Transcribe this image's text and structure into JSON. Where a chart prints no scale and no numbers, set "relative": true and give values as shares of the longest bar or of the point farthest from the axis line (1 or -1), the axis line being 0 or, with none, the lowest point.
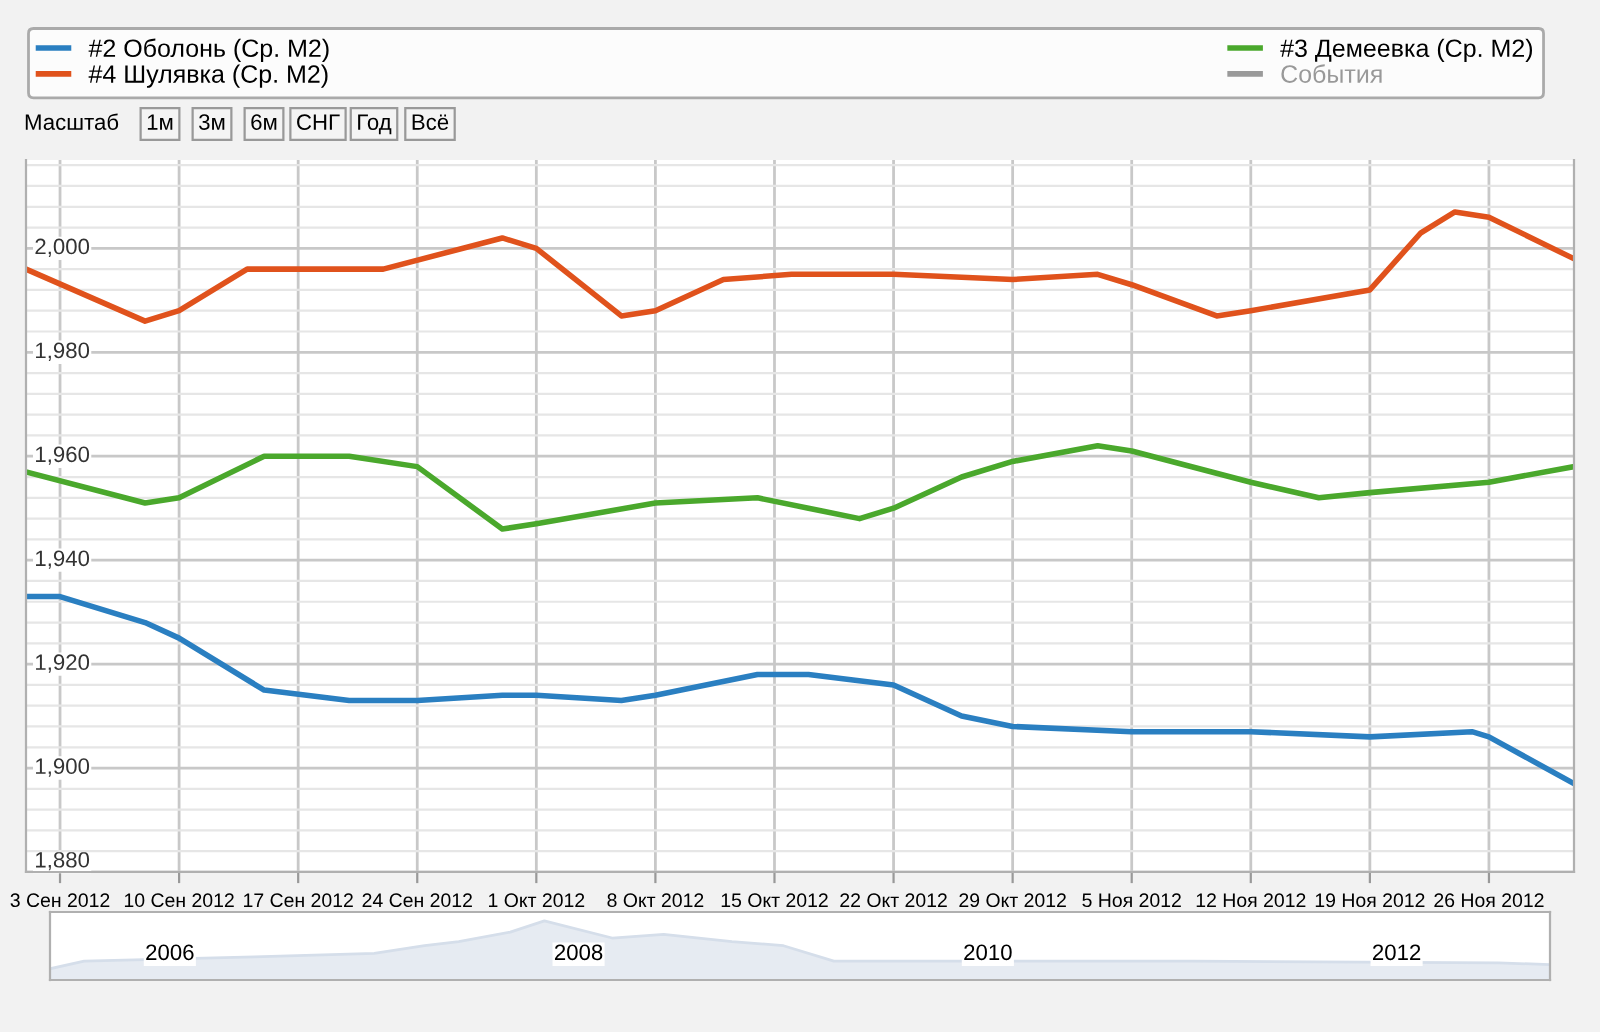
{
  "chart_data": [
    {
      "type": "line",
      "annotations": [
        "Масштаб",
        "1м",
        "3м",
        "6м",
        "СНГ",
        "Год",
        "Всё"
      ],
      "legend": "top",
      "grid": true,
      "xlim": [
        "2012-09-01",
        "2012-12-01"
      ],
      "xticks": [
        {
          "value": "2012-09-03",
          "label": "3 Сен 2012"
        },
        {
          "value": "2012-09-10",
          "label": "10 Сен 2012"
        },
        {
          "value": "2012-09-17",
          "label": "17 Сен 2012"
        },
        {
          "value": "2012-09-24",
          "label": "24 Сен 2012"
        },
        {
          "value": "2012-10-01",
          "label": "1 Окт 2012"
        },
        {
          "value": "2012-10-08",
          "label": "8 Окт 2012"
        },
        {
          "value": "2012-10-15",
          "label": "15 Окт 2012"
        },
        {
          "value": "2012-10-22",
          "label": "22 Окт 2012"
        },
        {
          "value": "2012-10-29",
          "label": "29 Окт 2012"
        },
        {
          "value": "2012-11-05",
          "label": "5 Ноя 2012"
        },
        {
          "value": "2012-11-12",
          "label": "12 Ноя 2012"
        },
        {
          "value": "2012-11-19",
          "label": "19 Ноя 2012"
        },
        {
          "value": "2012-11-26",
          "label": "26 Ноя 2012"
        }
      ],
      "ylim": [
        1880,
        2017
      ],
      "yticks": [
        {
          "value": 1880,
          "label": "1,880"
        },
        {
          "value": 1900,
          "label": "1,900"
        },
        {
          "value": 1920,
          "label": "1,920"
        },
        {
          "value": 1940,
          "label": "1,940"
        },
        {
          "value": 1960,
          "label": "1,960"
        },
        {
          "value": 1980,
          "label": "1,980"
        },
        {
          "value": 2000,
          "label": "2,000"
        }
      ],
      "series": [
        {
          "name": "#2 Оболонь (Ср. М2)",
          "color": "#2a7fc1",
          "x": [
            "2012-09-01",
            "2012-09-03",
            "2012-09-08",
            "2012-09-10",
            "2012-09-15",
            "2012-09-20",
            "2012-09-24",
            "2012-09-29",
            "2012-10-01",
            "2012-10-06",
            "2012-10-08",
            "2012-10-14",
            "2012-10-17",
            "2012-10-22",
            "2012-10-26",
            "2012-10-29",
            "2012-11-05",
            "2012-11-12",
            "2012-11-19",
            "2012-11-25",
            "2012-11-26",
            "2012-12-01"
          ],
          "values": [
            1933,
            1933,
            1928,
            1925,
            1915,
            1913,
            1913,
            1914,
            1914,
            1913,
            1914,
            1918,
            1918,
            1916,
            1910,
            1908,
            1907,
            1907,
            1906,
            1907,
            1906,
            1897
          ]
        },
        {
          "name": "#4 Шулявка (Ср. М2)",
          "color": "#e0521c",
          "x": [
            "2012-09-01",
            "2012-09-08",
            "2012-09-10",
            "2012-09-14",
            "2012-09-22",
            "2012-09-29",
            "2012-10-01",
            "2012-10-06",
            "2012-10-08",
            "2012-10-12",
            "2012-10-16",
            "2012-10-22",
            "2012-10-29",
            "2012-11-03",
            "2012-11-05",
            "2012-11-10",
            "2012-11-12",
            "2012-11-19",
            "2012-11-22",
            "2012-11-24",
            "2012-11-26",
            "2012-12-01"
          ],
          "values": [
            1996,
            1986,
            1988,
            1996,
            1996,
            2002,
            2000,
            1987,
            1988,
            1994,
            1995,
            1995,
            1994,
            1995,
            1993,
            1987,
            1988,
            1992,
            2003,
            2007,
            2006,
            1998
          ]
        },
        {
          "name": "#3 Демеевка (Ср. М2)",
          "color": "#4aa82c",
          "x": [
            "2012-09-01",
            "2012-09-08",
            "2012-09-10",
            "2012-09-15",
            "2012-09-20",
            "2012-09-24",
            "2012-09-29",
            "2012-10-01",
            "2012-10-08",
            "2012-10-14",
            "2012-10-17",
            "2012-10-20",
            "2012-10-22",
            "2012-10-26",
            "2012-10-29",
            "2012-11-03",
            "2012-11-05",
            "2012-11-12",
            "2012-11-16",
            "2012-11-19",
            "2012-11-26",
            "2012-12-01"
          ],
          "values": [
            1957,
            1951,
            1952,
            1960,
            1960,
            1958,
            1946,
            1947,
            1951,
            1952,
            1950,
            1948,
            1950,
            1956,
            1959,
            1962,
            1961,
            1955,
            1952,
            1953,
            1955,
            1958
          ]
        },
        {
          "name": "События",
          "color": "#9a9a9a"
        }
      ]
    },
    {
      "type": "area",
      "relative": true,
      "tick_labels": "x",
      "xlim": [
        "2005-06",
        "2012-10"
      ],
      "xticks": [
        {
          "value": "2006-01",
          "label": "2006"
        },
        {
          "value": "2008-01",
          "label": "2008"
        },
        {
          "value": "2010-01",
          "label": "2010"
        },
        {
          "value": "2012-01",
          "label": "2012"
        }
      ],
      "series": [
        {
          "color": "#d5deea",
          "x": [
            "2005-06",
            "2005-08",
            "2006-06",
            "2007-01",
            "2007-04",
            "2007-06",
            "2007-09",
            "2007-11",
            "2008-03",
            "2008-06",
            "2008-10",
            "2009-01",
            "2009-04",
            "2010-07",
            "2011-01",
            "2012-07",
            "2012-10"
          ],
          "values": [
            0.19,
            0.32,
            0.39,
            0.45,
            0.58,
            0.65,
            0.81,
            1,
            0.71,
            0.77,
            0.65,
            0.58,
            0.32,
            0.32,
            0.32,
            0.29,
            0.26
          ]
        }
      ]
    }
  ]
}
